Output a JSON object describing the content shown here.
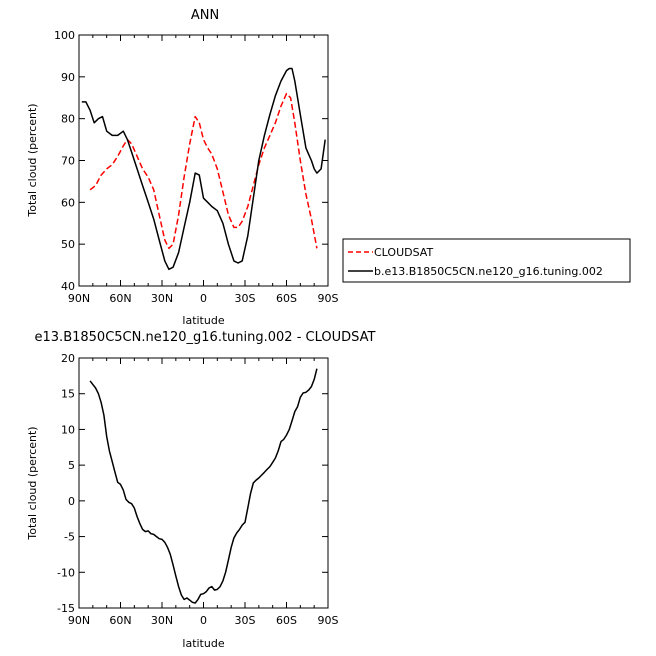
{
  "chart_data": [
    {
      "type": "line",
      "title": "ANN",
      "xlabel": "latitude",
      "ylabel": "Total cloud (percent)",
      "xlim": [
        90,
        -90
      ],
      "ylim": [
        40,
        100
      ],
      "x_ticks": [
        90,
        60,
        30,
        0,
        -30,
        -60,
        -90
      ],
      "x_tick_labels": [
        "90N",
        "60N",
        "30N",
        "0",
        "30S",
        "60S",
        "90S"
      ],
      "y_ticks": [
        40,
        50,
        60,
        70,
        80,
        90,
        100
      ],
      "y_tick_labels": [
        "40",
        "50",
        "60",
        "70",
        "80",
        "90",
        "100"
      ],
      "legend_position": "right",
      "series": [
        {
          "name": "CLOUDSAT",
          "color": "#ff0000",
          "dash": "dashed",
          "x": [
            82,
            78,
            74,
            70,
            66,
            62,
            58,
            55,
            52,
            48,
            44,
            40,
            36,
            32,
            28,
            25,
            22,
            18,
            14,
            10,
            6,
            3,
            0,
            -3,
            -6,
            -10,
            -14,
            -18,
            -22,
            -25,
            -28,
            -32,
            -36,
            -40,
            -44,
            -48,
            -52,
            -56,
            -60,
            -63,
            -66,
            -70,
            -74,
            -78,
            -82
          ],
          "y": [
            63,
            64,
            66.5,
            68,
            69,
            71,
            73.5,
            75,
            74,
            71,
            68,
            66,
            63,
            57,
            51,
            49,
            50,
            57,
            66,
            74,
            80.5,
            79,
            75,
            73,
            71.5,
            68,
            62.5,
            57,
            54,
            54,
            55.5,
            59,
            64,
            69,
            73,
            76,
            79,
            83,
            86,
            85,
            79,
            70,
            62,
            56,
            49
          ]
        },
        {
          "name": "b.e13.B1850C5CN.ne120_g16.tuning.002",
          "color": "#000000",
          "dash": "solid",
          "x": [
            88,
            85,
            82,
            79,
            76,
            73,
            70,
            66,
            62,
            58,
            55,
            52,
            48,
            44,
            40,
            36,
            32,
            28,
            25,
            22,
            18,
            14,
            10,
            6,
            3,
            0,
            -3,
            -6,
            -10,
            -14,
            -18,
            -22,
            -25,
            -28,
            -32,
            -36,
            -40,
            -44,
            -48,
            -52,
            -56,
            -60,
            -62,
            -64,
            -66,
            -70,
            -74,
            -76,
            -78,
            -80,
            -82,
            -85,
            -88
          ],
          "y": [
            84,
            84,
            82,
            79,
            80,
            80.5,
            77,
            76,
            76,
            77,
            75,
            72,
            68,
            64,
            60,
            56,
            51,
            46,
            44,
            44.5,
            48,
            54,
            60,
            67,
            66.5,
            61,
            60,
            59,
            58,
            55,
            50,
            46,
            45.5,
            46,
            52,
            61,
            70,
            76,
            81,
            85.5,
            89,
            91.5,
            92,
            92,
            89,
            81,
            73,
            71.5,
            70,
            68,
            67,
            68,
            75
          ]
        }
      ]
    },
    {
      "type": "line",
      "title": "e13.B1850C5CN.ne120_g16.tuning.002 - CLOUDSAT",
      "xlabel": "latitude",
      "ylabel": "Total cloud (percent)",
      "xlim": [
        90,
        -90
      ],
      "ylim": [
        -15,
        20
      ],
      "x_ticks": [
        90,
        60,
        30,
        0,
        -30,
        -60,
        -90
      ],
      "x_tick_labels": [
        "90N",
        "60N",
        "30N",
        "0",
        "30S",
        "60S",
        "90S"
      ],
      "y_ticks": [
        -15,
        -10,
        -5,
        0,
        5,
        10,
        15,
        20
      ],
      "y_tick_labels": [
        "-15",
        "-10",
        "-5",
        "0",
        "5",
        "10",
        "15",
        "20"
      ],
      "series": [
        {
          "color": "#000000",
          "dash": "solid",
          "x": [
            82,
            80,
            78,
            76,
            74,
            72,
            70,
            68,
            66,
            64,
            62,
            60,
            58,
            56,
            54,
            52,
            50,
            48,
            46,
            44,
            42,
            40,
            38,
            36,
            34,
            32,
            30,
            28,
            26,
            24,
            22,
            20,
            18,
            16,
            14,
            12,
            10,
            8,
            6,
            4,
            2,
            0,
            -2,
            -4,
            -6,
            -8,
            -10,
            -12,
            -14,
            -16,
            -18,
            -20,
            -22,
            -24,
            -26,
            -28,
            -30,
            -32,
            -34,
            -36,
            -38,
            -40,
            -42,
            -44,
            -46,
            -48,
            -50,
            -52,
            -54,
            -56,
            -58,
            -60,
            -62,
            -64,
            -66,
            -68,
            -70,
            -72,
            -74,
            -76,
            -78,
            -80,
            -82
          ],
          "y": [
            16.8,
            16.3,
            15.8,
            15.0,
            13.8,
            12.0,
            9.0,
            7.0,
            5.5,
            4.0,
            2.6,
            2.3,
            1.5,
            0.2,
            -0.2,
            -0.4,
            -1.0,
            -2.2,
            -3.2,
            -4.0,
            -4.3,
            -4.2,
            -4.6,
            -4.7,
            -5.0,
            -5.3,
            -5.4,
            -5.8,
            -6.5,
            -7.5,
            -9.0,
            -10.5,
            -12.0,
            -13.2,
            -13.8,
            -13.6,
            -13.9,
            -14.2,
            -14.3,
            -13.8,
            -13.1,
            -13.0,
            -12.7,
            -12.2,
            -12.0,
            -12.5,
            -12.4,
            -12.0,
            -11.2,
            -10.0,
            -8.3,
            -6.5,
            -5.2,
            -4.5,
            -4.0,
            -3.4,
            -3.0,
            -1.0,
            1.0,
            2.5,
            2.9,
            3.2,
            3.6,
            4.0,
            4.4,
            4.8,
            5.4,
            6.0,
            7.0,
            8.3,
            8.6,
            9.2,
            10.0,
            11.2,
            12.5,
            13.2,
            14.5,
            15.1,
            15.2,
            15.5,
            16.0,
            17.0,
            18.5
          ]
        }
      ]
    }
  ]
}
